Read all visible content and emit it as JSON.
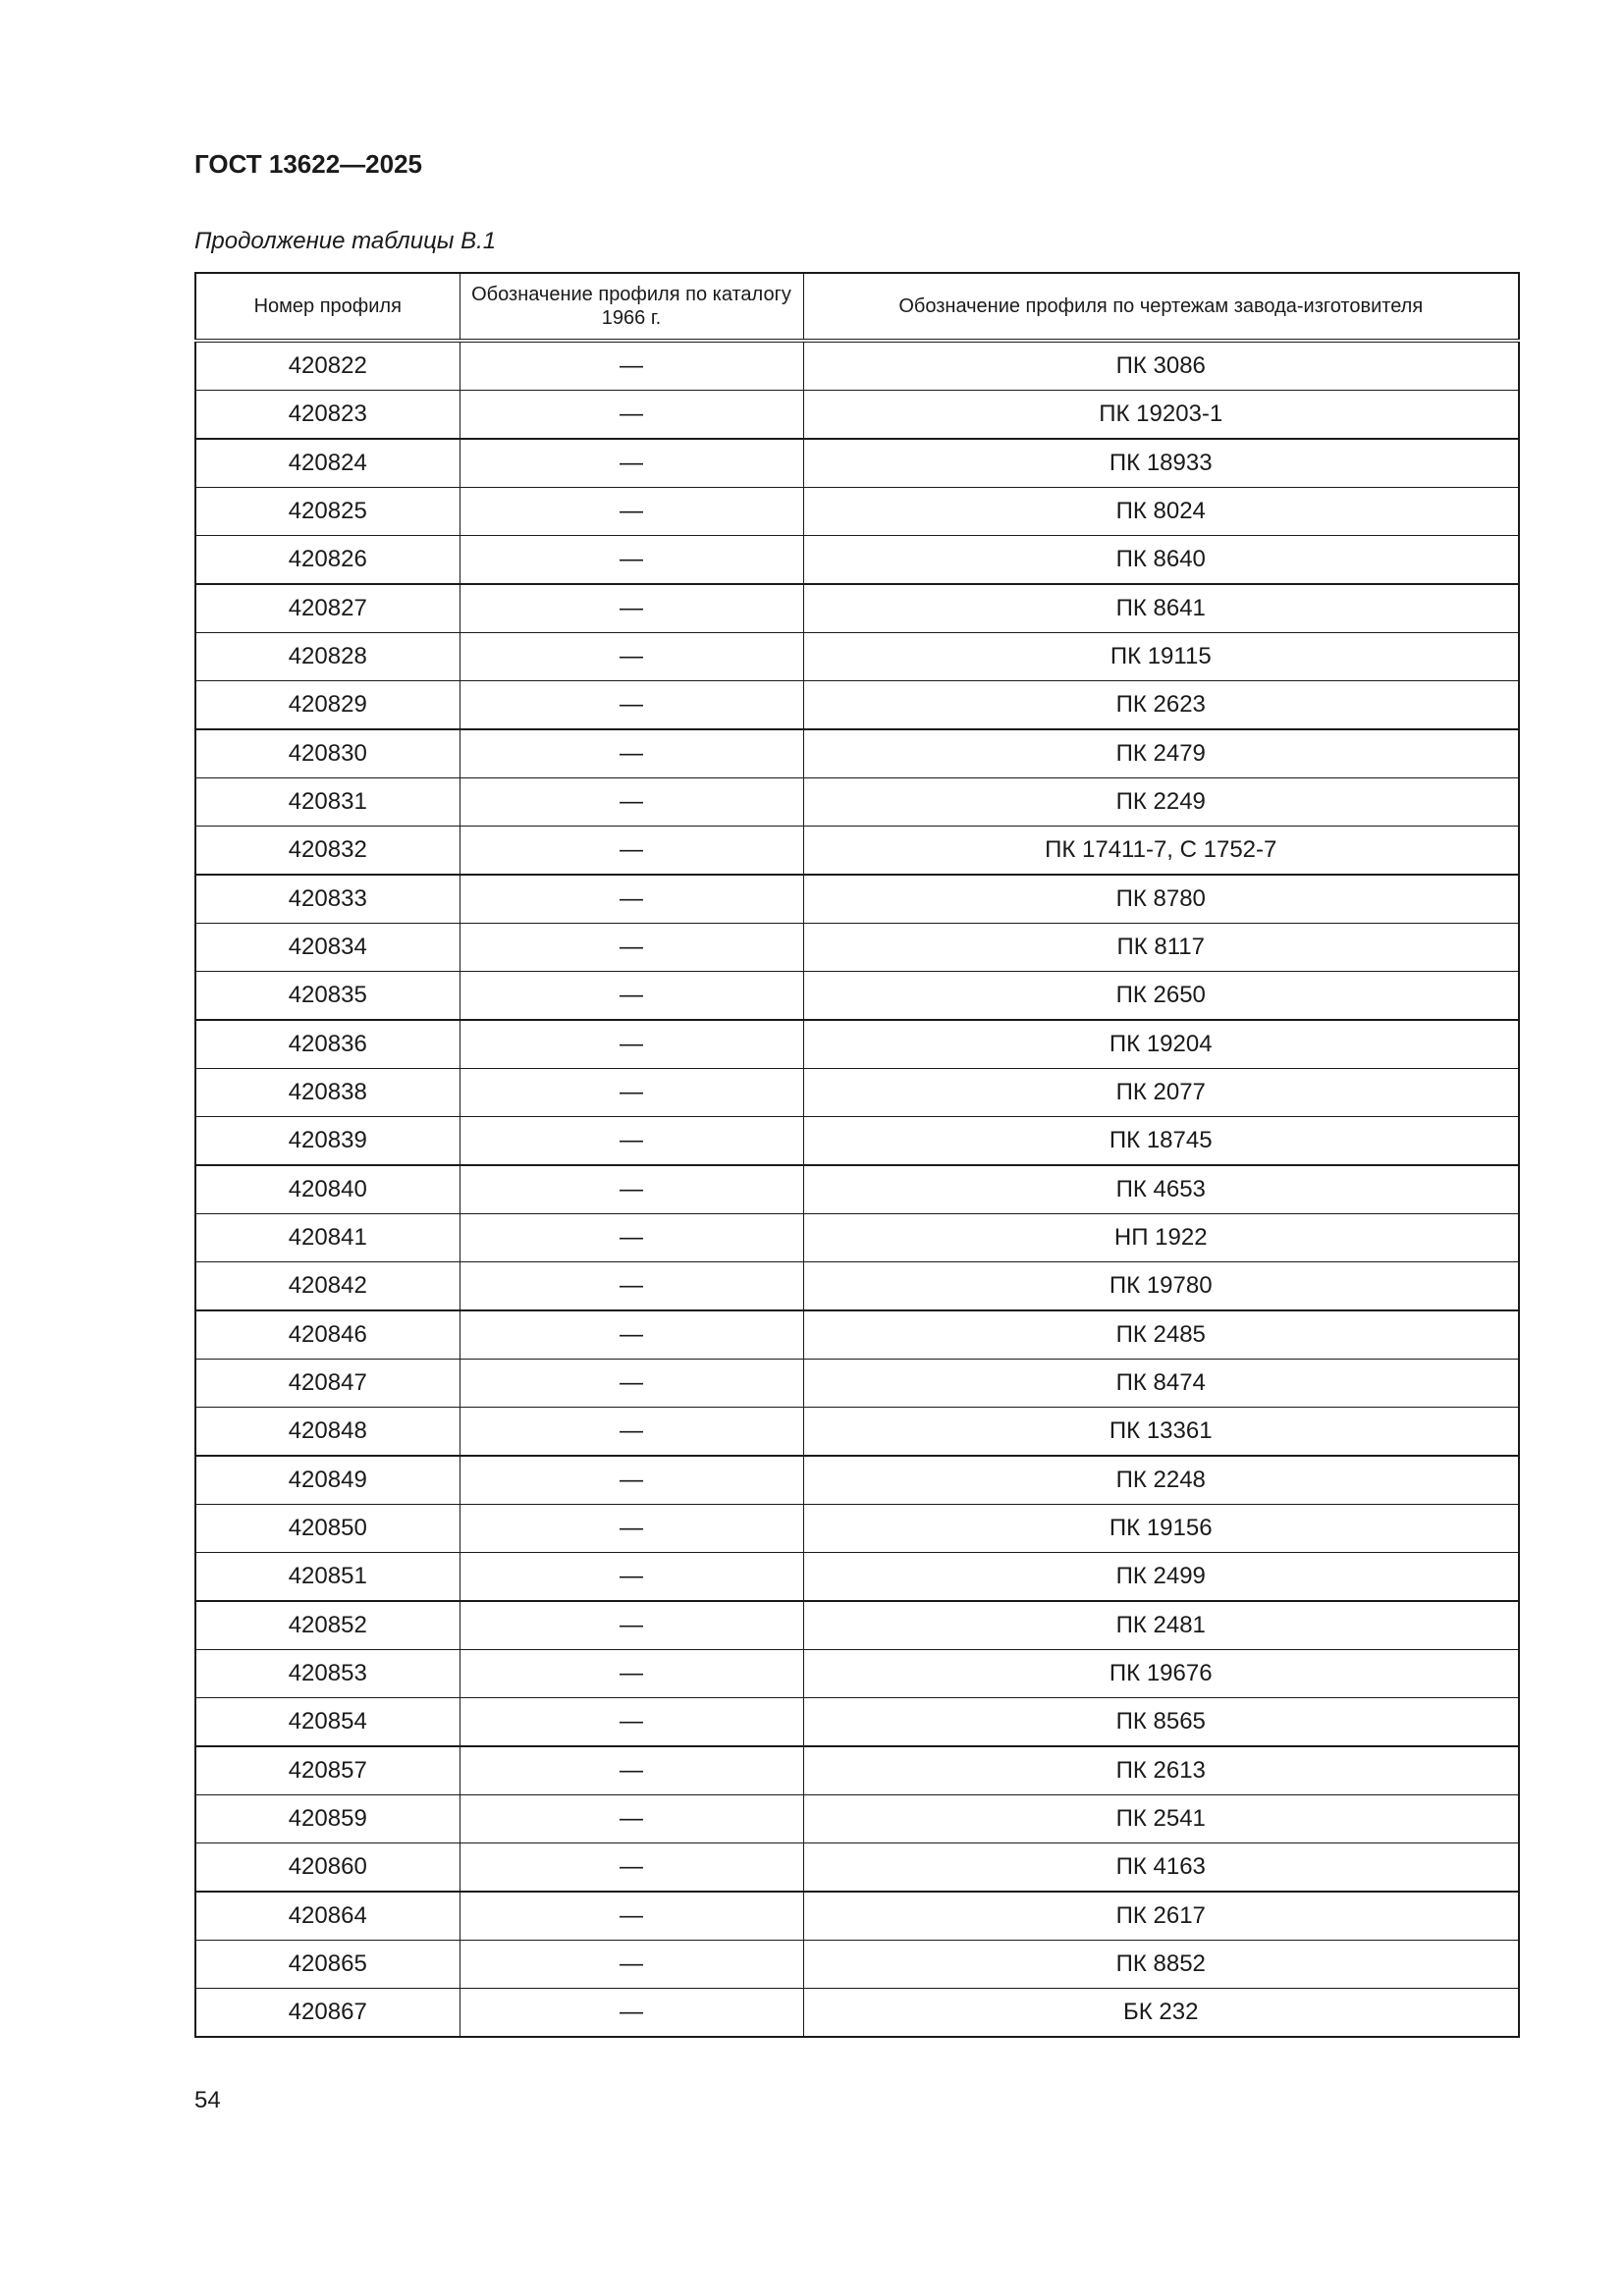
{
  "header": {
    "title": "ГОСТ 13622—2025"
  },
  "caption": "Продолжение таблицы В.1",
  "table": {
    "columns": [
      "Номер профиля",
      "Обозначение профиля по каталогу 1966 г.",
      "Обозначение профиля по чертежам завода-изготовителя"
    ],
    "rows": [
      [
        "420822",
        "—",
        "ПК 3086"
      ],
      [
        "420823",
        "—",
        "ПК 19203-1"
      ],
      [
        "420824",
        "—",
        "ПК 18933"
      ],
      [
        "420825",
        "—",
        "ПК 8024"
      ],
      [
        "420826",
        "—",
        "ПК 8640"
      ],
      [
        "420827",
        "—",
        "ПК 8641"
      ],
      [
        "420828",
        "—",
        "ПК 19115"
      ],
      [
        "420829",
        "—",
        "ПК 2623"
      ],
      [
        "420830",
        "—",
        "ПК 2479"
      ],
      [
        "420831",
        "—",
        "ПК 2249"
      ],
      [
        "420832",
        "—",
        "ПК 17411-7, С 1752-7"
      ],
      [
        "420833",
        "—",
        "ПК 8780"
      ],
      [
        "420834",
        "—",
        "ПК 8117"
      ],
      [
        "420835",
        "—",
        "ПК 2650"
      ],
      [
        "420836",
        "—",
        "ПК 19204"
      ],
      [
        "420838",
        "—",
        "ПК 2077"
      ],
      [
        "420839",
        "—",
        "ПК 18745"
      ],
      [
        "420840",
        "—",
        "ПК 4653"
      ],
      [
        "420841",
        "—",
        "НП 1922"
      ],
      [
        "420842",
        "—",
        "ПК 19780"
      ],
      [
        "420846",
        "—",
        "ПК 2485"
      ],
      [
        "420847",
        "—",
        "ПК 8474"
      ],
      [
        "420848",
        "—",
        "ПК 13361"
      ],
      [
        "420849",
        "—",
        "ПК 2248"
      ],
      [
        "420850",
        "—",
        "ПК 19156"
      ],
      [
        "420851",
        "—",
        "ПК 2499"
      ],
      [
        "420852",
        "—",
        "ПК 2481"
      ],
      [
        "420853",
        "—",
        "ПК 19676"
      ],
      [
        "420854",
        "—",
        "ПК 8565"
      ],
      [
        "420857",
        "—",
        "ПК 2613"
      ],
      [
        "420859",
        "—",
        "ПК 2541"
      ],
      [
        "420860",
        "—",
        "ПК 4163"
      ],
      [
        "420864",
        "—",
        "ПК 2617"
      ],
      [
        "420865",
        "—",
        "ПК 8852"
      ],
      [
        "420867",
        "—",
        "БК 232"
      ]
    ]
  },
  "footer": {
    "page_number": "54"
  }
}
